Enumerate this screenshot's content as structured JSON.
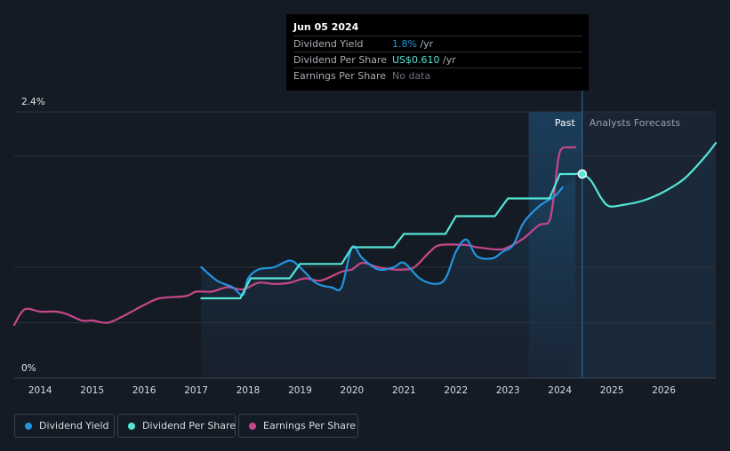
{
  "chart_data": {
    "type": "line",
    "y_axis": {
      "min_label": "0%",
      "max_label": "2.4%",
      "ylim": [
        0,
        2.4
      ]
    },
    "x_ticks": [
      "2014",
      "2015",
      "2016",
      "2017",
      "2018",
      "2019",
      "2020",
      "2021",
      "2022",
      "2023",
      "2024",
      "2025",
      "2026"
    ],
    "xlim": [
      2013.5,
      2027.0
    ],
    "regions": {
      "past_label": "Past",
      "forecast_label": "Analysts Forecasts",
      "past_start": 2023.4,
      "forecast_start": 2024.43
    },
    "series": [
      {
        "name": "Dividend Yield",
        "color": "#2394df",
        "unit": "%",
        "points": [
          [
            2017.1,
            1.0
          ],
          [
            2017.4,
            0.88
          ],
          [
            2017.7,
            0.82
          ],
          [
            2017.9,
            0.75
          ],
          [
            2018.0,
            0.9
          ],
          [
            2018.2,
            0.98
          ],
          [
            2018.5,
            1.0
          ],
          [
            2018.8,
            1.06
          ],
          [
            2019.0,
            1.0
          ],
          [
            2019.3,
            0.86
          ],
          [
            2019.6,
            0.82
          ],
          [
            2019.8,
            0.82
          ],
          [
            2020.0,
            1.18
          ],
          [
            2020.2,
            1.08
          ],
          [
            2020.5,
            0.98
          ],
          [
            2020.8,
            1.0
          ],
          [
            2021.0,
            1.04
          ],
          [
            2021.3,
            0.9
          ],
          [
            2021.6,
            0.85
          ],
          [
            2021.8,
            0.9
          ],
          [
            2022.0,
            1.14
          ],
          [
            2022.2,
            1.25
          ],
          [
            2022.4,
            1.1
          ],
          [
            2022.7,
            1.08
          ],
          [
            2022.9,
            1.14
          ],
          [
            2023.1,
            1.2
          ],
          [
            2023.3,
            1.4
          ],
          [
            2023.6,
            1.55
          ],
          [
            2023.9,
            1.64
          ],
          [
            2024.05,
            1.72
          ]
        ]
      },
      {
        "name": "Dividend Per Share",
        "color": "#54e5d6",
        "unit": "US$",
        "points": [
          [
            2017.1,
            0.72
          ],
          [
            2017.85,
            0.72
          ],
          [
            2018.05,
            0.9
          ],
          [
            2018.8,
            0.9
          ],
          [
            2019.0,
            1.03
          ],
          [
            2019.8,
            1.03
          ],
          [
            2020.0,
            1.18
          ],
          [
            2020.8,
            1.18
          ],
          [
            2021.0,
            1.3
          ],
          [
            2021.8,
            1.3
          ],
          [
            2022.0,
            1.46
          ],
          [
            2022.75,
            1.46
          ],
          [
            2023.0,
            1.62
          ],
          [
            2023.8,
            1.62
          ],
          [
            2024.0,
            1.84
          ],
          [
            2024.3,
            1.84
          ]
        ]
      },
      {
        "name": "Dividend Per Share Forecast",
        "color": "#54e5d6",
        "points": [
          [
            2024.3,
            1.84
          ],
          [
            2024.43,
            1.84
          ],
          [
            2024.6,
            1.78
          ],
          [
            2024.8,
            1.62
          ],
          [
            2024.95,
            1.55
          ],
          [
            2025.2,
            1.56
          ],
          [
            2025.6,
            1.6
          ],
          [
            2026.0,
            1.68
          ],
          [
            2026.4,
            1.8
          ],
          [
            2026.8,
            2.0
          ],
          [
            2027.0,
            2.12
          ]
        ]
      },
      {
        "name": "Earnings Per Share",
        "color": "#c7478a",
        "unit": "US$",
        "points": [
          [
            2013.5,
            0.48
          ],
          [
            2013.7,
            0.62
          ],
          [
            2014.0,
            0.6
          ],
          [
            2014.3,
            0.6
          ],
          [
            2014.5,
            0.58
          ],
          [
            2014.8,
            0.52
          ],
          [
            2015.0,
            0.52
          ],
          [
            2015.3,
            0.5
          ],
          [
            2015.6,
            0.56
          ],
          [
            2016.0,
            0.66
          ],
          [
            2016.3,
            0.72
          ],
          [
            2016.8,
            0.74
          ],
          [
            2017.0,
            0.78
          ],
          [
            2017.3,
            0.78
          ],
          [
            2017.6,
            0.82
          ],
          [
            2017.9,
            0.8
          ],
          [
            2018.2,
            0.86
          ],
          [
            2018.5,
            0.85
          ],
          [
            2018.8,
            0.86
          ],
          [
            2019.1,
            0.9
          ],
          [
            2019.4,
            0.88
          ],
          [
            2019.8,
            0.96
          ],
          [
            2020.0,
            0.98
          ],
          [
            2020.2,
            1.04
          ],
          [
            2020.5,
            1.0
          ],
          [
            2020.8,
            0.98
          ],
          [
            2021.0,
            0.98
          ],
          [
            2021.2,
            1.0
          ],
          [
            2021.5,
            1.14
          ],
          [
            2021.7,
            1.2
          ],
          [
            2022.2,
            1.2
          ],
          [
            2022.4,
            1.18
          ],
          [
            2022.8,
            1.16
          ],
          [
            2023.0,
            1.18
          ],
          [
            2023.3,
            1.26
          ],
          [
            2023.6,
            1.38
          ],
          [
            2023.8,
            1.42
          ],
          [
            2023.9,
            1.7
          ],
          [
            2024.0,
            2.04
          ],
          [
            2024.2,
            2.08
          ],
          [
            2024.3,
            2.08
          ]
        ]
      }
    ],
    "highlight_point": {
      "x": 2024.43,
      "y": 1.84,
      "color": "#54e5d6"
    }
  },
  "tooltip": {
    "date": "Jun 05 2024",
    "rows": [
      {
        "label": "Dividend Yield",
        "value": "1.8%",
        "unit": " /yr",
        "color": "#2394df"
      },
      {
        "label": "Dividend Per Share",
        "value": "US$0.610",
        "unit": " /yr",
        "color": "#54e5d6"
      },
      {
        "label": "Earnings Per Share",
        "value": "No data",
        "unit": "",
        "color": "#6b7079"
      }
    ]
  },
  "legend": [
    {
      "label": "Dividend Yield",
      "color": "#2394df"
    },
    {
      "label": "Dividend Per Share",
      "color": "#54e5d6"
    },
    {
      "label": "Earnings Per Share",
      "color": "#c7478a"
    }
  ]
}
